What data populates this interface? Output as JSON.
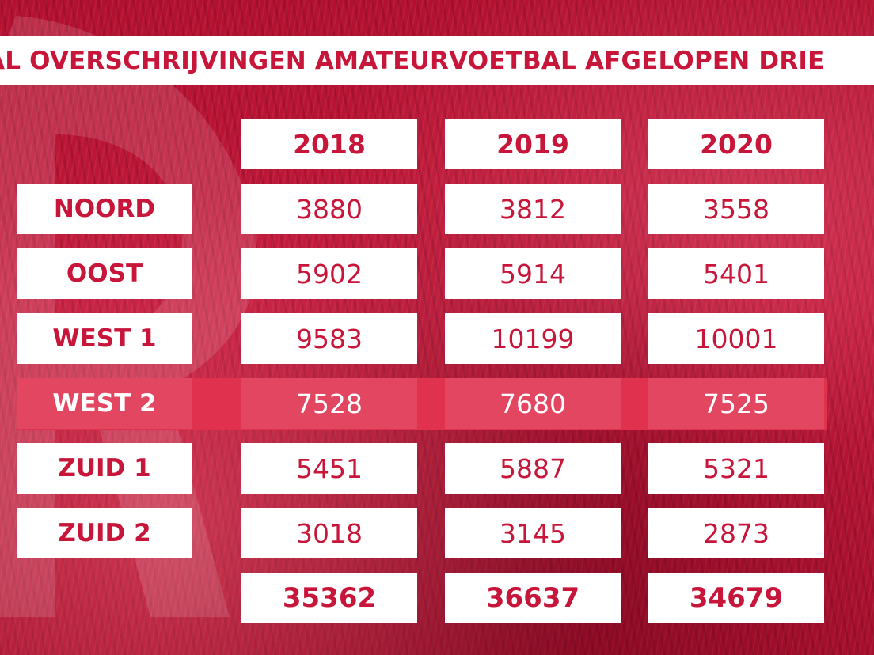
{
  "title": "AL OVERSCHRIJVINGEN AMATEURVOETBAL AFGELOPEN DRIE",
  "colors": {
    "accent": "#c8163a",
    "highlight_row": "#e0314f",
    "background": "#b3102f",
    "cell": "#ffffff"
  },
  "chart_data": {
    "type": "table",
    "columns": [
      "2018",
      "2019",
      "2020"
    ],
    "rows": [
      {
        "label": "NOORD",
        "values": [
          "3880",
          "3812",
          "3558"
        ]
      },
      {
        "label": "OOST",
        "values": [
          "5902",
          "5914",
          "5401"
        ]
      },
      {
        "label": "WEST 1",
        "values": [
          "9583",
          "10199",
          "10001"
        ]
      },
      {
        "label": "WEST 2",
        "values": [
          "7528",
          "7680",
          "7525"
        ],
        "highlighted": true
      },
      {
        "label": "ZUID 1",
        "values": [
          "5451",
          "5887",
          "5321"
        ]
      },
      {
        "label": "ZUID 2",
        "values": [
          "3018",
          "3145",
          "2873"
        ]
      }
    ],
    "totals": [
      "35362",
      "36637",
      "34679"
    ]
  }
}
